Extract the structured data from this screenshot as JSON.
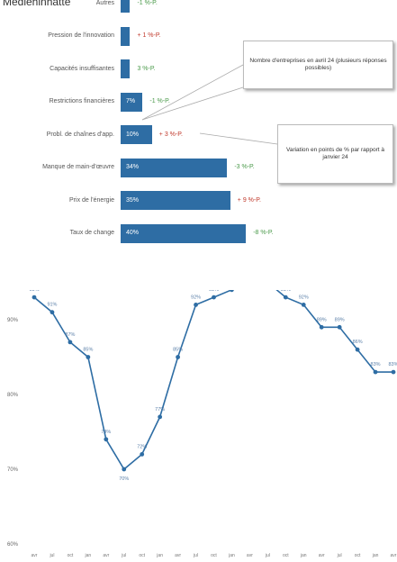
{
  "title_fragment": "Mediehinhatte",
  "chart_data": [
    {
      "type": "bar",
      "orientation": "horizontal",
      "categories": [
        "Autres",
        "Pression de l'innovation",
        "Capacités insuffisantes",
        "Restrictions financières",
        "Probl. de chaînes d'app.",
        "Manque de main-d'œuvre",
        "Prix de l'énergie",
        "Taux de change"
      ],
      "values": [
        3,
        3,
        3,
        7,
        10,
        34,
        35,
        40
      ],
      "value_labels": [
        "3%",
        "3%",
        "3%",
        "7%",
        "10%",
        "34%",
        "35%",
        "40%"
      ],
      "changes": [
        "-1 %-P.",
        "+ 1 %-P.",
        "3 %-P.",
        "-1 %-P.",
        "+ 3 %-P.",
        "-3 %-P.",
        "+ 9 %-P.",
        "-8 %-P."
      ],
      "change_signs": [
        "neg",
        "pos",
        "neg",
        "neg",
        "pos",
        "neg",
        "pos",
        "neg"
      ],
      "annotations": [
        "Nombre d'entreprises en avril 24 (plusieurs réponses possibles)",
        "Variation en points de % par rapport à janvier 24"
      ],
      "colors": {
        "bar": "#2e6da4",
        "positive": "#c0392b",
        "negative": "#4a9a4a"
      }
    },
    {
      "type": "line",
      "values": [
        93,
        91,
        87,
        85,
        74,
        70,
        72,
        77,
        85,
        92,
        93,
        94,
        95,
        95,
        93,
        92,
        89,
        89,
        86,
        83,
        83
      ],
      "value_labels": [
        "93%",
        "91%",
        "87%",
        "85%",
        "74%",
        "70%",
        "72%",
        "77%",
        "85%",
        "92%",
        "93%",
        "94%",
        "95%",
        "95%",
        "93%",
        "92%",
        "89%",
        "89%",
        "86%",
        "83%",
        "83%"
      ],
      "x_tick_labels": [
        "avr",
        "jul",
        "oct",
        "jan",
        "avr",
        "jul",
        "oct",
        "jan",
        "avr",
        "jul",
        "oct",
        "jan",
        "avr",
        "jul",
        "oct",
        "jan",
        "avr",
        "jul",
        "oct",
        "jan",
        "avr"
      ],
      "y_ticks": [
        60,
        70,
        80,
        90
      ],
      "y_tick_labels": [
        "60%",
        "70%",
        "80%",
        "90%"
      ],
      "ylim": [
        60,
        97
      ],
      "colors": {
        "line": "#2e6da4"
      }
    }
  ]
}
